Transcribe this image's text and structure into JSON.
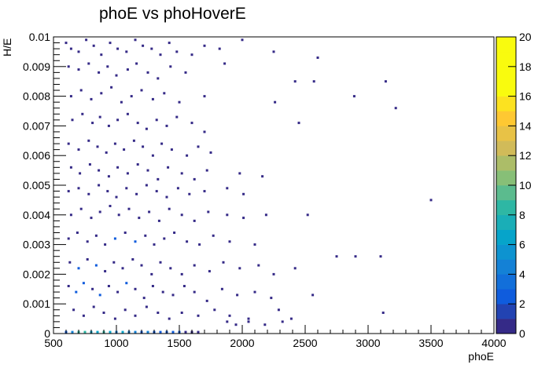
{
  "chart_data": {
    "type": "heatmap",
    "title": "phoE vs phoHoverE",
    "xlabel": "phoE",
    "ylabel": "H/E",
    "xlim": [
      500,
      4000
    ],
    "ylim": [
      0,
      0.01
    ],
    "x_ticks": [
      "500",
      "1000",
      "1500",
      "2000",
      "2500",
      "3000",
      "3500",
      "4000"
    ],
    "y_ticks": [
      "0",
      "0.001",
      "0.002",
      "0.003",
      "0.004",
      "0.005",
      "0.006",
      "0.007",
      "0.008",
      "0.009",
      "0.01"
    ],
    "colorbar": {
      "min": 0,
      "max": 20,
      "ticks": [
        "0",
        "2",
        "4",
        "6",
        "8",
        "10",
        "12",
        "14",
        "16",
        "18",
        "20"
      ],
      "colors": [
        "#352a87",
        "#0f5cdd",
        "#1481d6",
        "#06a4ca",
        "#2eb7a4",
        "#87bf77",
        "#d1bb59",
        "#fec832",
        "#f9fb0e",
        "#f9fb0e"
      ]
    },
    "grid": false,
    "cells": [
      [
        600,
        0.0098,
        1
      ],
      [
        640,
        0.0096,
        1
      ],
      [
        700,
        0.0095,
        1
      ],
      [
        760,
        0.0099,
        1
      ],
      [
        820,
        0.0097,
        1
      ],
      [
        880,
        0.0094,
        1
      ],
      [
        950,
        0.0098,
        1
      ],
      [
        1010,
        0.0096,
        1
      ],
      [
        1080,
        0.0095,
        1
      ],
      [
        1150,
        0.0099,
        1
      ],
      [
        1210,
        0.0097,
        1
      ],
      [
        1280,
        0.0096,
        1
      ],
      [
        1350,
        0.0094,
        1
      ],
      [
        1420,
        0.0098,
        1
      ],
      [
        1480,
        0.0095,
        1
      ],
      [
        1600,
        0.0094,
        1
      ],
      [
        1700,
        0.0097,
        1
      ],
      [
        1820,
        0.0096,
        1
      ],
      [
        2000,
        0.0099,
        1
      ],
      [
        2250,
        0.0095,
        1
      ],
      [
        2600,
        0.0093,
        1
      ],
      [
        620,
        0.009,
        1
      ],
      [
        700,
        0.0089,
        1
      ],
      [
        780,
        0.0091,
        1
      ],
      [
        860,
        0.0088,
        1
      ],
      [
        930,
        0.009,
        1
      ],
      [
        1000,
        0.0087,
        1
      ],
      [
        1090,
        0.0089,
        1
      ],
      [
        1160,
        0.0091,
        1
      ],
      [
        1250,
        0.0088,
        1
      ],
      [
        1330,
        0.0086,
        1
      ],
      [
        1430,
        0.009,
        1
      ],
      [
        1550,
        0.0088,
        1
      ],
      [
        1860,
        0.0091,
        1
      ],
      [
        2420,
        0.0085,
        1
      ],
      [
        2570,
        0.0085,
        1
      ],
      [
        3140,
        0.0085,
        1
      ],
      [
        640,
        0.008,
        1
      ],
      [
        720,
        0.0082,
        1
      ],
      [
        800,
        0.0079,
        1
      ],
      [
        880,
        0.0081,
        1
      ],
      [
        960,
        0.0083,
        1
      ],
      [
        1040,
        0.0078,
        1
      ],
      [
        1120,
        0.008,
        1
      ],
      [
        1200,
        0.0082,
        1
      ],
      [
        1290,
        0.0079,
        1
      ],
      [
        1380,
        0.0081,
        1
      ],
      [
        1500,
        0.0078,
        1
      ],
      [
        1700,
        0.008,
        1
      ],
      [
        2260,
        0.0078,
        1
      ],
      [
        2890,
        0.008,
        1
      ],
      [
        3220,
        0.0076,
        1
      ],
      [
        650,
        0.0072,
        1
      ],
      [
        730,
        0.0074,
        1
      ],
      [
        810,
        0.0071,
        1
      ],
      [
        870,
        0.0073,
        1
      ],
      [
        940,
        0.007,
        1
      ],
      [
        1010,
        0.0072,
        1
      ],
      [
        1090,
        0.0074,
        1
      ],
      [
        1170,
        0.0071,
        1
      ],
      [
        1240,
        0.0069,
        1
      ],
      [
        1320,
        0.0072,
        1
      ],
      [
        1400,
        0.007,
        1
      ],
      [
        1480,
        0.0073,
        1
      ],
      [
        1600,
        0.0071,
        1
      ],
      [
        1700,
        0.0068,
        1
      ],
      [
        2450,
        0.0071,
        1
      ],
      [
        620,
        0.0064,
        1
      ],
      [
        700,
        0.0062,
        1
      ],
      [
        780,
        0.0065,
        1
      ],
      [
        850,
        0.0063,
        1
      ],
      [
        920,
        0.0061,
        1
      ],
      [
        990,
        0.0064,
        1
      ],
      [
        1060,
        0.0062,
        1
      ],
      [
        1140,
        0.0065,
        1
      ],
      [
        1210,
        0.0063,
        1
      ],
      [
        1290,
        0.006,
        1
      ],
      [
        1360,
        0.0064,
        1
      ],
      [
        1440,
        0.0062,
        1
      ],
      [
        1560,
        0.006,
        1
      ],
      [
        1650,
        0.0063,
        1
      ],
      [
        1750,
        0.0061,
        1
      ],
      [
        640,
        0.0056,
        1
      ],
      [
        710,
        0.0054,
        1
      ],
      [
        790,
        0.0057,
        1
      ],
      [
        860,
        0.0055,
        1
      ],
      [
        940,
        0.0053,
        1
      ],
      [
        1010,
        0.0056,
        1
      ],
      [
        1090,
        0.0054,
        1
      ],
      [
        1170,
        0.0057,
        1
      ],
      [
        1250,
        0.0055,
        1
      ],
      [
        1330,
        0.0052,
        1
      ],
      [
        1410,
        0.0056,
        1
      ],
      [
        1520,
        0.0054,
        1
      ],
      [
        1620,
        0.0052,
        1
      ],
      [
        1720,
        0.0055,
        1
      ],
      [
        1980,
        0.0054,
        1
      ],
      [
        2160,
        0.0053,
        1
      ],
      [
        620,
        0.0048,
        1
      ],
      [
        700,
        0.0049,
        1
      ],
      [
        780,
        0.0047,
        1
      ],
      [
        860,
        0.005,
        1
      ],
      [
        930,
        0.0048,
        1
      ],
      [
        1000,
        0.0046,
        1
      ],
      [
        1080,
        0.0049,
        1
      ],
      [
        1160,
        0.0047,
        1
      ],
      [
        1240,
        0.005,
        1
      ],
      [
        1320,
        0.0048,
        1
      ],
      [
        1400,
        0.0046,
        1
      ],
      [
        1490,
        0.0049,
        1
      ],
      [
        1580,
        0.0047,
        1
      ],
      [
        1700,
        0.0048,
        1
      ],
      [
        1880,
        0.0049,
        1
      ],
      [
        2010,
        0.0047,
        1
      ],
      [
        3500,
        0.0045,
        1
      ],
      [
        640,
        0.004,
        1
      ],
      [
        720,
        0.0042,
        1
      ],
      [
        800,
        0.0039,
        1
      ],
      [
        870,
        0.0041,
        1
      ],
      [
        950,
        0.0043,
        1
      ],
      [
        1020,
        0.004,
        1
      ],
      [
        1100,
        0.0042,
        1
      ],
      [
        1180,
        0.0039,
        1
      ],
      [
        1260,
        0.0041,
        1
      ],
      [
        1340,
        0.0038,
        1
      ],
      [
        1420,
        0.0042,
        1
      ],
      [
        1520,
        0.004,
        1
      ],
      [
        1620,
        0.0038,
        1
      ],
      [
        1730,
        0.0041,
        1
      ],
      [
        1880,
        0.004,
        1
      ],
      [
        2010,
        0.0039,
        1
      ],
      [
        2190,
        0.004,
        1
      ],
      [
        2520,
        0.004,
        1
      ],
      [
        620,
        0.0032,
        1
      ],
      [
        690,
        0.0034,
        1
      ],
      [
        770,
        0.0031,
        1
      ],
      [
        840,
        0.0033,
        1
      ],
      [
        910,
        0.003,
        1
      ],
      [
        990,
        0.0032,
        2
      ],
      [
        1070,
        0.0034,
        1
      ],
      [
        1150,
        0.0031,
        2
      ],
      [
        1230,
        0.0033,
        1
      ],
      [
        1300,
        0.003,
        1
      ],
      [
        1380,
        0.0032,
        1
      ],
      [
        1460,
        0.0034,
        1
      ],
      [
        1560,
        0.0031,
        1
      ],
      [
        1660,
        0.003,
        1
      ],
      [
        1770,
        0.0033,
        1
      ],
      [
        1900,
        0.0031,
        1
      ],
      [
        2100,
        0.003,
        1
      ],
      [
        2750,
        0.0026,
        1
      ],
      [
        2900,
        0.0026,
        1
      ],
      [
        3100,
        0.0026,
        1
      ],
      [
        630,
        0.0024,
        1
      ],
      [
        700,
        0.0022,
        2
      ],
      [
        770,
        0.0025,
        1
      ],
      [
        840,
        0.0023,
        2
      ],
      [
        910,
        0.0021,
        1
      ],
      [
        980,
        0.0024,
        1
      ],
      [
        1050,
        0.0022,
        1
      ],
      [
        1130,
        0.0025,
        1
      ],
      [
        1200,
        0.0023,
        1
      ],
      [
        1280,
        0.002,
        1
      ],
      [
        1350,
        0.0024,
        1
      ],
      [
        1430,
        0.0022,
        1
      ],
      [
        1520,
        0.002,
        1
      ],
      [
        1620,
        0.0023,
        1
      ],
      [
        1740,
        0.0021,
        1
      ],
      [
        1850,
        0.0024,
        1
      ],
      [
        1980,
        0.0022,
        1
      ],
      [
        2130,
        0.0023,
        1
      ],
      [
        2250,
        0.002,
        1
      ],
      [
        2420,
        0.0022,
        1
      ],
      [
        620,
        0.0016,
        1
      ],
      [
        680,
        0.0014,
        2
      ],
      [
        740,
        0.0017,
        2
      ],
      [
        810,
        0.0015,
        1
      ],
      [
        870,
        0.0013,
        2
      ],
      [
        940,
        0.0016,
        1
      ],
      [
        1010,
        0.0014,
        1
      ],
      [
        1080,
        0.0017,
        2
      ],
      [
        1150,
        0.0015,
        1
      ],
      [
        1220,
        0.0012,
        1
      ],
      [
        1290,
        0.0016,
        1
      ],
      [
        1370,
        0.0014,
        1
      ],
      [
        1450,
        0.0013,
        1
      ],
      [
        1540,
        0.0016,
        1
      ],
      [
        1620,
        0.0014,
        1
      ],
      [
        1720,
        0.0011,
        1
      ],
      [
        1840,
        0.0015,
        1
      ],
      [
        1960,
        0.0013,
        1
      ],
      [
        2100,
        0.0014,
        1
      ],
      [
        2230,
        0.0012,
        1
      ],
      [
        2560,
        0.0013,
        1
      ],
      [
        660,
        0.0008,
        1
      ],
      [
        740,
        0.0006,
        1
      ],
      [
        820,
        0.0009,
        1
      ],
      [
        900,
        0.0007,
        1
      ],
      [
        990,
        0.0005,
        1
      ],
      [
        1070,
        0.0008,
        1
      ],
      [
        1150,
        0.0006,
        1
      ],
      [
        1240,
        0.0009,
        1
      ],
      [
        1330,
        0.0007,
        1
      ],
      [
        1420,
        0.0005,
        1
      ],
      [
        1520,
        0.0007,
        1
      ],
      [
        1650,
        0.0006,
        1
      ],
      [
        1780,
        0.0008,
        1
      ],
      [
        1900,
        0.0006,
        1
      ],
      [
        2050,
        0.0005,
        1
      ],
      [
        2290,
        0.0008,
        1
      ],
      [
        3120,
        0.0007,
        1
      ],
      [
        1880,
        0.0004,
        1
      ],
      [
        2050,
        0.0004,
        1
      ],
      [
        2320,
        0.0004,
        1
      ],
      [
        2390,
        0.0005,
        1
      ],
      [
        1950,
        0.0003,
        1
      ],
      [
        2180,
        0.0003,
        1
      ],
      [
        600,
        5e-05,
        2
      ],
      [
        650,
        5e-05,
        4
      ],
      [
        700,
        5e-05,
        8
      ],
      [
        750,
        5e-05,
        9
      ],
      [
        800,
        5e-05,
        6
      ],
      [
        850,
        5e-05,
        7
      ],
      [
        900,
        5e-05,
        8
      ],
      [
        950,
        5e-05,
        6
      ],
      [
        1000,
        5e-05,
        5
      ],
      [
        1050,
        5e-05,
        6
      ],
      [
        1100,
        5e-05,
        4
      ],
      [
        1150,
        5e-05,
        5
      ],
      [
        1200,
        5e-05,
        3
      ],
      [
        1250,
        5e-05,
        4
      ],
      [
        1300,
        5e-05,
        3
      ],
      [
        1350,
        5e-05,
        3
      ],
      [
        1400,
        5e-05,
        2
      ],
      [
        1450,
        5e-05,
        2
      ],
      [
        1500,
        5e-05,
        2
      ],
      [
        1550,
        5e-05,
        1
      ],
      [
        1600,
        5e-05,
        1
      ],
      [
        1650,
        5e-05,
        1
      ]
    ]
  }
}
